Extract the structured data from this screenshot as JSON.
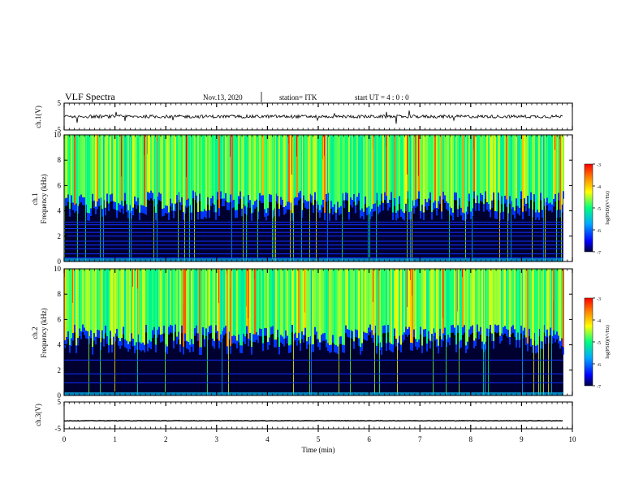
{
  "header": {
    "title": "VLF Spectra",
    "date": "Nov.13, 2020",
    "station": "station= ITK",
    "start_ut": "start UT =  4 : 0  : 0"
  },
  "chart_data": {
    "type": "heatmap",
    "x_axis": {
      "label": "Time (min)",
      "range": [
        0,
        10
      ],
      "ticks": [
        "0",
        "1",
        "2",
        "3",
        "4",
        "5",
        "6",
        "7",
        "8",
        "9",
        "10"
      ],
      "data_end": 9.82
    },
    "panels": [
      {
        "id": "ch1v",
        "kind": "waveform",
        "ylabel": "ch.1(V)",
        "ylim": [
          -5,
          5
        ],
        "yticks": [
          "5",
          "-5"
        ],
        "baseline": 0
      },
      {
        "id": "ch1",
        "kind": "spectrogram",
        "ylabel": "ch.1\nFrequency (kHz)",
        "ylim": [
          0,
          10
        ],
        "yticks": [
          "0",
          "2",
          "4",
          "6",
          "8",
          "10"
        ],
        "colorbar": {
          "label": "log(PSD)(V²/Hz)",
          "range": [
            -7,
            -3
          ],
          "ticks": [
            "-3",
            "-4",
            "-5",
            "-6",
            "-7"
          ]
        },
        "lines_khz": [
          0.3,
          0.6,
          1.0,
          1.3,
          1.6,
          2.0,
          2.3,
          2.6,
          2.9,
          3.1
        ]
      },
      {
        "id": "ch2",
        "kind": "spectrogram",
        "ylabel": "ch.2\nFrequency (kHz)",
        "ylim": [
          0,
          10
        ],
        "yticks": [
          "0",
          "2",
          "4",
          "6",
          "8",
          "10"
        ],
        "colorbar": {
          "label": "log(PSD)(V²/Hz)",
          "range": [
            -7,
            -3
          ],
          "ticks": [
            "-3",
            "-4",
            "-5",
            "-6",
            "-7"
          ]
        },
        "lines_khz": [
          1.0,
          1.7,
          2.8
        ]
      },
      {
        "id": "ch3v",
        "kind": "waveform",
        "ylabel": "ch.3(V)",
        "ylim": [
          -5,
          5
        ],
        "yticks": [
          "5",
          "-5"
        ],
        "baseline": -2
      }
    ],
    "grid": false
  },
  "colors": {
    "colormap": [
      "#000040",
      "#0000ff",
      "#00aaff",
      "#00ff80",
      "#ffff00",
      "#ff8000",
      "#ff0000"
    ]
  }
}
